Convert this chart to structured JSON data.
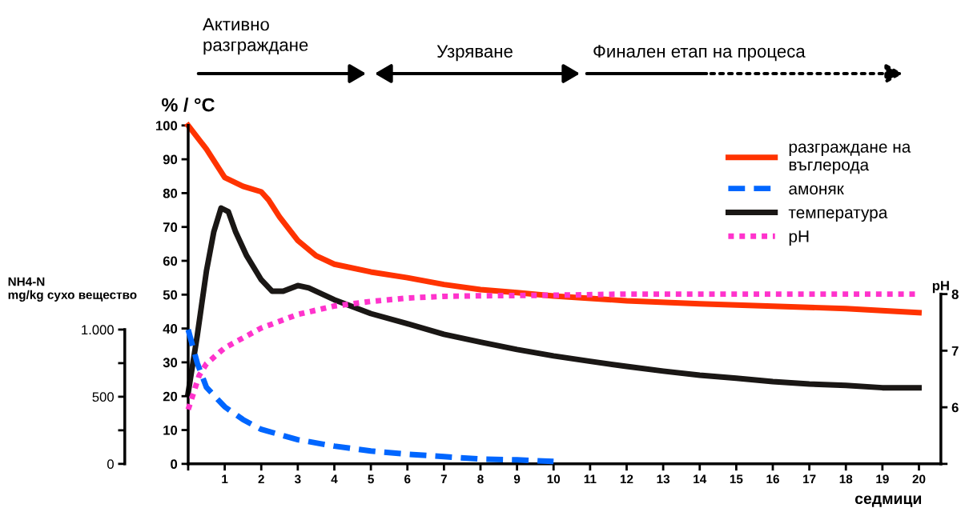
{
  "chart_data": {
    "type": "line",
    "ylabel": "% / °C",
    "y2label": "pH",
    "y3label": "NH4-N\nmg/kg сухо вещество",
    "xlabel": "седмици",
    "annotations": [
      "Активно\nразграждане",
      "Узряване",
      "Финален етап на процеса"
    ],
    "xlim": [
      0,
      20.6
    ],
    "xticks": [
      {
        "value": 0,
        "label": null
      },
      1,
      2,
      3,
      4,
      5,
      6,
      7,
      8,
      9,
      10,
      11,
      12,
      13,
      14,
      15,
      16,
      17,
      18,
      19,
      20
    ],
    "ylim": [
      0,
      100
    ],
    "yticks": [
      0,
      10,
      20,
      30,
      40,
      50,
      60,
      70,
      80,
      90,
      100
    ],
    "y2lim": [
      5,
      10.98
    ],
    "y2ticks": [
      {
        "value": 5,
        "label": null
      },
      6,
      7,
      8
    ],
    "y3lim": [
      0,
      2520
    ],
    "y3ticks": [
      0,
      {
        "value": 250,
        "label": null
      },
      500,
      {
        "value": 750,
        "label": null
      },
      {
        "value": 1000,
        "label": "1.000"
      }
    ],
    "grid": false,
    "legend": "top right",
    "series": [
      {
        "name": "разграждане на\nвъглерода",
        "color": "#ff3300",
        "line_style": "solid",
        "x": [
          0,
          0.5,
          1,
          1.5,
          2,
          2.2,
          2.5,
          3,
          3.5,
          4,
          5,
          6,
          7,
          8,
          9,
          10,
          12,
          14,
          16,
          18,
          20
        ],
        "values": [
          100,
          93,
          84.6,
          82,
          80.4,
          78,
          73,
          66,
          61.5,
          59,
          56.7,
          55,
          53,
          51.5,
          50.6,
          49.6,
          48.2,
          47.3,
          46.6,
          45.9,
          44.7
        ]
      },
      {
        "name": "амоняк",
        "color": "#0066ff",
        "line_style": "dashed",
        "axis": "y3",
        "x": [
          0,
          0.25,
          0.5,
          1,
          1.5,
          2,
          3,
          4,
          5,
          6,
          7,
          8,
          9,
          10
        ],
        "values": [
          1000,
          750,
          570,
          425,
          330,
          257,
          180,
          132,
          96,
          72,
          54,
          36,
          30,
          18
        ]
      },
      {
        "name": "температура",
        "color": "#1a1715",
        "line_style": "solid",
        "x": [
          0,
          0.25,
          0.5,
          0.7,
          0.9,
          1.1,
          1.3,
          1.6,
          2,
          2.3,
          2.6,
          3,
          3.3,
          4,
          5,
          6,
          7,
          8,
          9,
          10,
          11,
          12,
          13,
          14,
          15,
          16,
          17,
          18,
          19,
          20
        ],
        "values": [
          21,
          38,
          57,
          68.5,
          75.6,
          74.5,
          68.5,
          61.5,
          54.4,
          51,
          51,
          52.7,
          52,
          48.5,
          44.4,
          41.4,
          38.3,
          36,
          33.8,
          31.9,
          30.3,
          28.8,
          27.4,
          26.2,
          25.3,
          24.3,
          23.6,
          23.2,
          22.5,
          22.5
        ]
      },
      {
        "name": "pH",
        "color": "#ff33cc",
        "line_style": "dotted",
        "axis": "y2",
        "x": [
          0,
          0.3,
          0.5,
          1,
          2,
          3,
          4,
          5,
          6,
          7,
          8,
          10,
          12,
          20
        ],
        "values": [
          5.96,
          6.56,
          6.77,
          7.05,
          7.4,
          7.64,
          7.79,
          7.87,
          7.93,
          7.96,
          7.97,
          7.98,
          8.0,
          8.0
        ]
      }
    ]
  }
}
